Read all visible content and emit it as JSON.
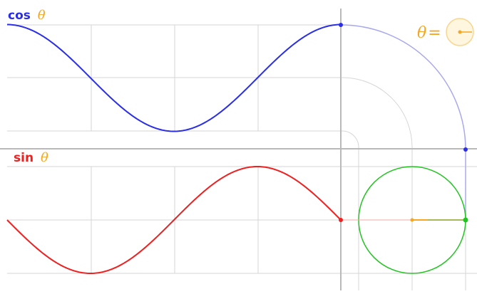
{
  "cos_label": {
    "fn": "cos",
    "var": "θ"
  },
  "sin_label": {
    "fn": "sin",
    "var": "θ"
  },
  "theta_label": {
    "text": "θ",
    "eq": "="
  },
  "colors": {
    "cos": "#2a2ee6",
    "sin": "#ee2020",
    "circle": "#22c422",
    "theta": "#f5a623",
    "grid": "#d6d6d6",
    "axis": "#b9b9b9",
    "arc": "#a9a9ee"
  },
  "state": {
    "theta_degrees": 0,
    "cos_value": 1,
    "sin_value": 0
  }
}
